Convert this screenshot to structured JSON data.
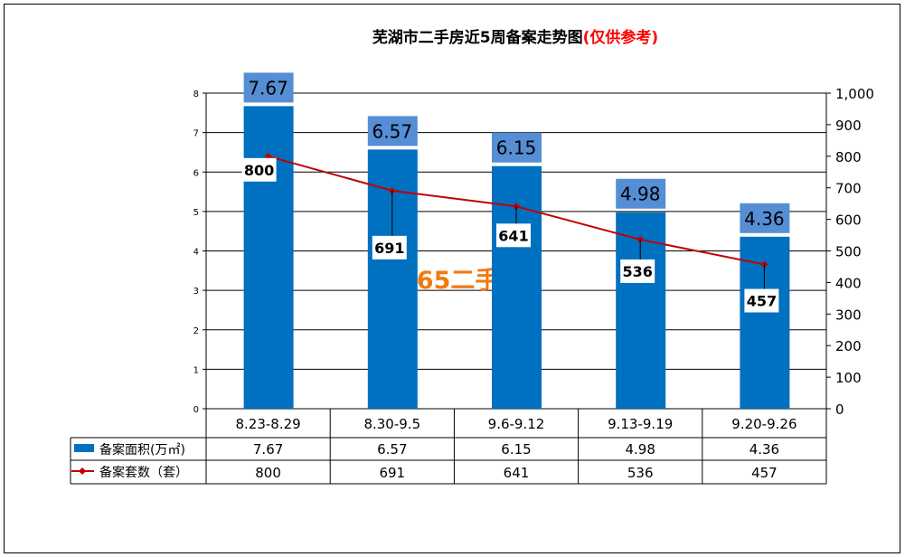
{
  "chart_data": {
    "type": "bar",
    "title": "芜湖市二手房近5周备案走势图",
    "title_note": "(仅供参考)",
    "categories": [
      "8.23-8.29",
      "8.30-9.5",
      "9.6-9.12",
      "9.13-9.19",
      "9.20-9.26"
    ],
    "series": [
      {
        "name": "备案面积(万㎡)",
        "type": "bar",
        "axis": "left",
        "values": [
          7.67,
          6.57,
          6.15,
          4.98,
          4.36
        ],
        "labels": [
          "7.67",
          "6.57",
          "6.15",
          "4.98",
          "4.36"
        ],
        "color": "#0070C0"
      },
      {
        "name": "备案套数(套)",
        "type": "line",
        "axis": "right",
        "values": [
          800,
          691,
          641,
          536,
          457
        ],
        "labels": [
          "800",
          "691",
          "641",
          "536",
          "457"
        ],
        "color": "#C00000"
      }
    ],
    "left_axis": {
      "range": [
        0,
        8
      ],
      "ticks": [
        "0",
        "1",
        "2",
        "3",
        "4",
        "5",
        "6",
        "7",
        "8"
      ]
    },
    "right_axis": {
      "range": [
        0,
        1000
      ],
      "ticks": [
        "0",
        "100",
        "200",
        "300",
        "400",
        "500",
        "600",
        "700",
        "800",
        "900",
        "1,000"
      ]
    },
    "grid": true,
    "legend": "data-table",
    "table_legend": [
      "备案面积(万㎡)",
      "备案套数（套）"
    ],
    "table_rows": [
      [
        "7.67",
        "6.57",
        "6.15",
        "4.98",
        "4.36"
      ],
      [
        "800",
        "691",
        "641",
        "536",
        "457"
      ]
    ],
    "watermark": "芜湖365二手房"
  }
}
